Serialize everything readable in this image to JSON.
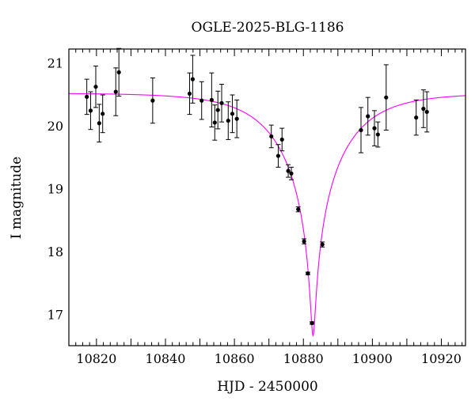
{
  "chart_data": {
    "type": "scatter",
    "title": "OGLE-2025-BLG-1186",
    "xlabel": "HJD - 2450000",
    "ylabel": "I magnitude",
    "xlim": [
      10812,
      10927
    ],
    "ylim": [
      21.22,
      16.5
    ],
    "y_inverted": true,
    "x_ticks": [
      10820,
      10840,
      10860,
      10880,
      10900,
      10920
    ],
    "y_ticks": [
      17,
      18,
      19,
      20,
      21
    ],
    "grid": false,
    "model_color": "#ff00ff",
    "point_color": "#000000",
    "model": {
      "t0": 10882.8,
      "peak_mag": 16.66,
      "baseline_mag": 20.52,
      "u0": 0.034,
      "tE": 18.0
    },
    "points": [
      {
        "x": 10817.2,
        "y": 20.46,
        "err": 0.28
      },
      {
        "x": 10818.3,
        "y": 20.24,
        "err": 0.3
      },
      {
        "x": 10819.8,
        "y": 20.62,
        "err": 0.33
      },
      {
        "x": 10820.8,
        "y": 20.04,
        "err": 0.3
      },
      {
        "x": 10821.8,
        "y": 20.19,
        "err": 0.3
      },
      {
        "x": 10825.6,
        "y": 20.54,
        "err": 0.38
      },
      {
        "x": 10826.5,
        "y": 20.85,
        "err": 0.38
      },
      {
        "x": 10836.3,
        "y": 20.4,
        "err": 0.36
      },
      {
        "x": 10847.0,
        "y": 20.51,
        "err": 0.33
      },
      {
        "x": 10847.9,
        "y": 20.74,
        "err": 0.38
      },
      {
        "x": 10850.5,
        "y": 20.4,
        "err": 0.3
      },
      {
        "x": 10853.4,
        "y": 20.41,
        "err": 0.43
      },
      {
        "x": 10854.3,
        "y": 20.05,
        "err": 0.28
      },
      {
        "x": 10855.2,
        "y": 20.25,
        "err": 0.3
      },
      {
        "x": 10856.3,
        "y": 20.36,
        "err": 0.3
      },
      {
        "x": 10858.2,
        "y": 20.08,
        "err": 0.3
      },
      {
        "x": 10859.4,
        "y": 20.19,
        "err": 0.3
      },
      {
        "x": 10860.7,
        "y": 20.11,
        "err": 0.3
      },
      {
        "x": 10870.7,
        "y": 19.83,
        "err": 0.18
      },
      {
        "x": 10872.7,
        "y": 19.52,
        "err": 0.18
      },
      {
        "x": 10873.8,
        "y": 19.78,
        "err": 0.18
      },
      {
        "x": 10875.6,
        "y": 19.28,
        "err": 0.1
      },
      {
        "x": 10876.5,
        "y": 19.24,
        "err": 0.1
      },
      {
        "x": 10878.5,
        "y": 18.67,
        "err": 0.04
      },
      {
        "x": 10880.2,
        "y": 18.16,
        "err": 0.04
      },
      {
        "x": 10881.3,
        "y": 17.65,
        "err": 0.02
      },
      {
        "x": 10882.5,
        "y": 16.86,
        "err": 0.02
      },
      {
        "x": 10885.5,
        "y": 18.11,
        "err": 0.04
      },
      {
        "x": 10896.7,
        "y": 19.93,
        "err": 0.36
      },
      {
        "x": 10898.7,
        "y": 20.15,
        "err": 0.3
      },
      {
        "x": 10900.6,
        "y": 19.96,
        "err": 0.28
      },
      {
        "x": 10901.6,
        "y": 19.86,
        "err": 0.2
      },
      {
        "x": 10904.0,
        "y": 20.45,
        "err": 0.52
      },
      {
        "x": 10912.7,
        "y": 20.13,
        "err": 0.28
      },
      {
        "x": 10914.8,
        "y": 20.27,
        "err": 0.3
      },
      {
        "x": 10915.8,
        "y": 20.22,
        "err": 0.32
      }
    ]
  }
}
